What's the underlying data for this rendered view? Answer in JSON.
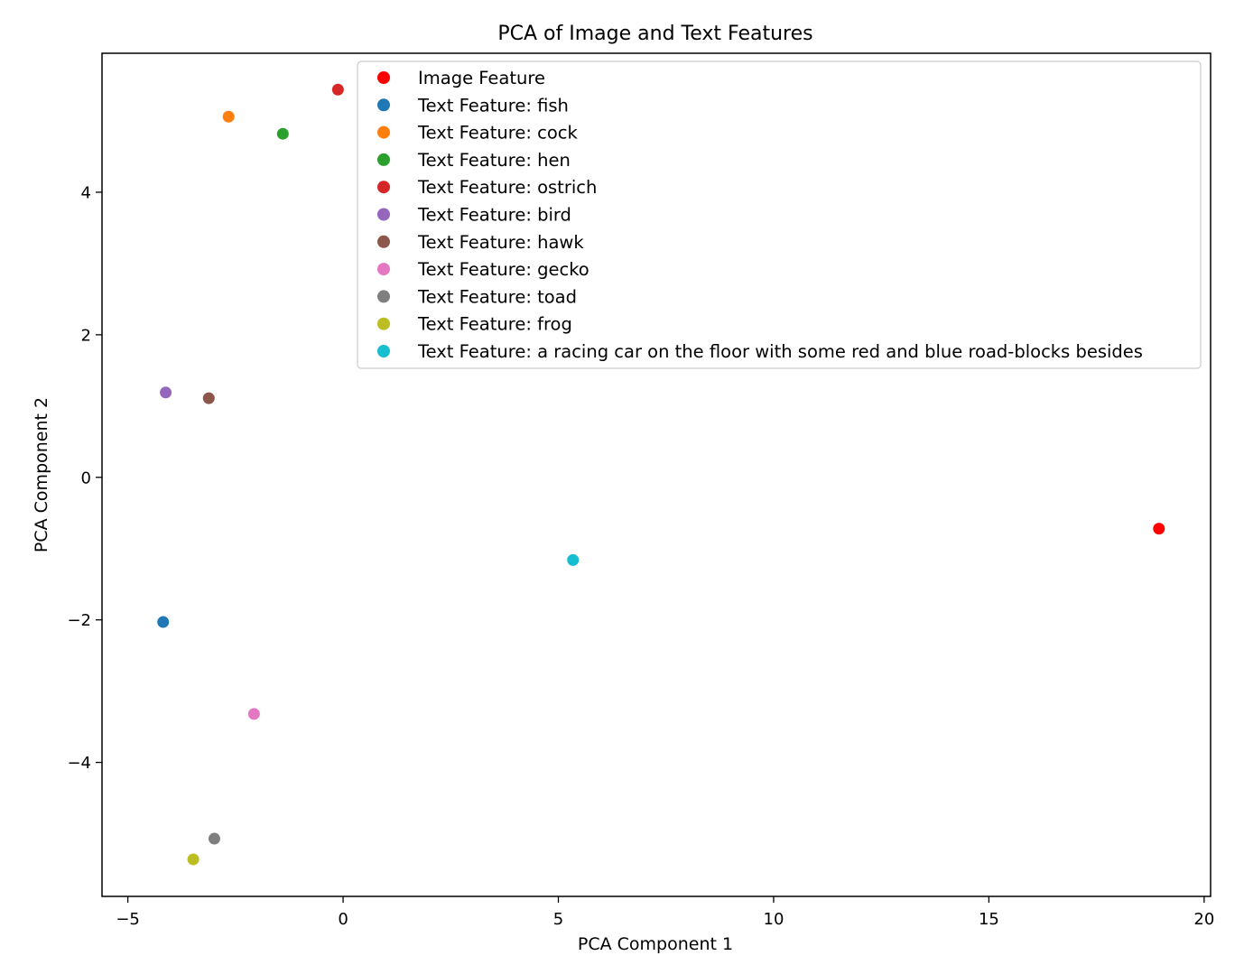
{
  "chart_data": {
    "type": "scatter",
    "title": "PCA of Image and Text Features",
    "xlabel": "PCA Component 1",
    "ylabel": "PCA Component 2",
    "xlim": [
      -5.6,
      20.15
    ],
    "ylim": [
      -5.88,
      5.95
    ],
    "xticks": [
      -5,
      0,
      5,
      10,
      15,
      20
    ],
    "xtick_labels": [
      "−5",
      "0",
      "5",
      "10",
      "15",
      "20"
    ],
    "yticks": [
      -4,
      -2,
      0,
      2,
      4
    ],
    "ytick_labels": [
      "−4",
      "−2",
      "0",
      "2",
      "4"
    ],
    "grid": false,
    "legend_position": "upper-right",
    "series": [
      {
        "name": "Image Feature",
        "color": "#ff0000",
        "x": 18.95,
        "y": -0.72
      },
      {
        "name": "Text Feature: fish",
        "color": "#1f77b4",
        "x": -4.18,
        "y": -2.03
      },
      {
        "name": "Text Feature: cock",
        "color": "#ff7f0e",
        "x": -2.66,
        "y": 5.06
      },
      {
        "name": "Text Feature: hen",
        "color": "#2ca02c",
        "x": -1.4,
        "y": 4.82
      },
      {
        "name": "Text Feature: ostrich",
        "color": "#d62728",
        "x": -0.12,
        "y": 5.44
      },
      {
        "name": "Text Feature: bird",
        "color": "#9467bd",
        "x": -4.12,
        "y": 1.19
      },
      {
        "name": "Text Feature: hawk",
        "color": "#8c564b",
        "x": -3.12,
        "y": 1.11
      },
      {
        "name": "Text Feature: gecko",
        "color": "#e377c2",
        "x": -2.07,
        "y": -3.32
      },
      {
        "name": "Text Feature: toad",
        "color": "#7f7f7f",
        "x": -2.99,
        "y": -5.07
      },
      {
        "name": "Text Feature: frog",
        "color": "#bcbd22",
        "x": -3.48,
        "y": -5.36
      },
      {
        "name": "Text Feature: a racing car on the floor with some red and blue road-blocks besides",
        "color": "#17becf",
        "x": 5.34,
        "y": -1.16
      }
    ]
  }
}
